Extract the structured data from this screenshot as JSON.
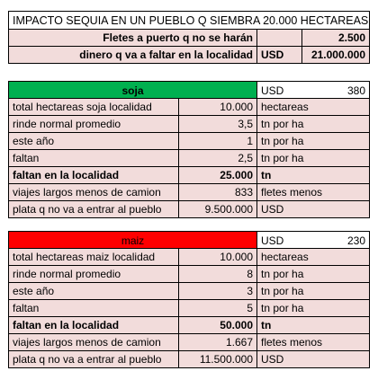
{
  "header": {
    "title": "IMPACTO SEQUIA EN UN PUEBLO Q SIEMBRA 20.000 HECTAREAS",
    "row1_label": "Fletes a puerto q no se harán",
    "row1_value": "2.500",
    "row2_label": "dinero q va a faltar en la localidad",
    "row2_currency": "USD",
    "row2_value": "21.000.000"
  },
  "soja": {
    "name": "soja",
    "currency": "USD",
    "price": "380",
    "rows": [
      {
        "label": "total hectareas soja localidad",
        "value": "10.000",
        "unit": "hectareas"
      },
      {
        "label": "rinde normal promedio",
        "value": "3,5",
        "unit": "tn por ha"
      },
      {
        "label": "este año",
        "value": "1",
        "unit": "tn por ha"
      },
      {
        "label": "faltan",
        "value": "2,5",
        "unit": "tn por ha"
      },
      {
        "label": "faltan en la localidad",
        "value": "25.000",
        "unit": "tn"
      },
      {
        "label": "viajes largos menos de camion",
        "value": "833",
        "unit": "fletes menos"
      },
      {
        "label": "plata q no va a entrar al pueblo",
        "value": "9.500.000",
        "unit": "USD"
      }
    ]
  },
  "maiz": {
    "name": "maiz",
    "currency": "USD",
    "price": "230",
    "rows": [
      {
        "label": "total hectareas maiz localidad",
        "value": "10.000",
        "unit": "hectareas"
      },
      {
        "label": "rinde normal promedio",
        "value": "8",
        "unit": "tn por ha"
      },
      {
        "label": "este año",
        "value": "3",
        "unit": "tn por ha"
      },
      {
        "label": "faltan",
        "value": "5",
        "unit": "tn por ha"
      },
      {
        "label": "faltan en la localidad",
        "value": "50.000",
        "unit": "tn"
      },
      {
        "label": "viajes largos menos de camion",
        "value": "1.667",
        "unit": "fletes menos"
      },
      {
        "label": "plata q no va a entrar al pueblo",
        "value": "11.500.000",
        "unit": "USD"
      }
    ]
  },
  "colors": {
    "pink": "#f2dcdb",
    "green": "#00b050",
    "red": "#ff0000"
  }
}
